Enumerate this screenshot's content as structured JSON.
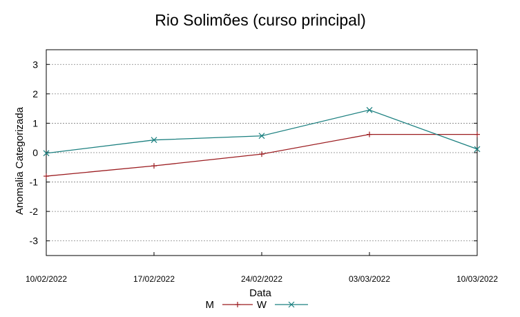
{
  "chart_data": {
    "type": "line",
    "title": "Rio Solimões (curso principal)",
    "xlabel": "Data",
    "ylabel": "Anomalia Categorizada",
    "x": [
      "10/02/2022",
      "17/02/2022",
      "24/02/2022",
      "03/03/2022",
      "10/03/2022"
    ],
    "yticks": [
      "3",
      "2",
      "1",
      "0",
      "-1",
      "-2",
      "-3"
    ],
    "ylim": [
      -3.5,
      3.5
    ],
    "grid": true,
    "legend_position": "bottom",
    "series": [
      {
        "name": "M",
        "color": "#9b1b1f",
        "marker": "plus",
        "values": [
          -0.8,
          -0.45,
          -0.05,
          0.62,
          0.62
        ]
      },
      {
        "name": "W",
        "color": "#1a7f7f",
        "marker": "cross",
        "values": [
          -0.02,
          0.43,
          0.57,
          1.45,
          0.12
        ]
      }
    ]
  }
}
